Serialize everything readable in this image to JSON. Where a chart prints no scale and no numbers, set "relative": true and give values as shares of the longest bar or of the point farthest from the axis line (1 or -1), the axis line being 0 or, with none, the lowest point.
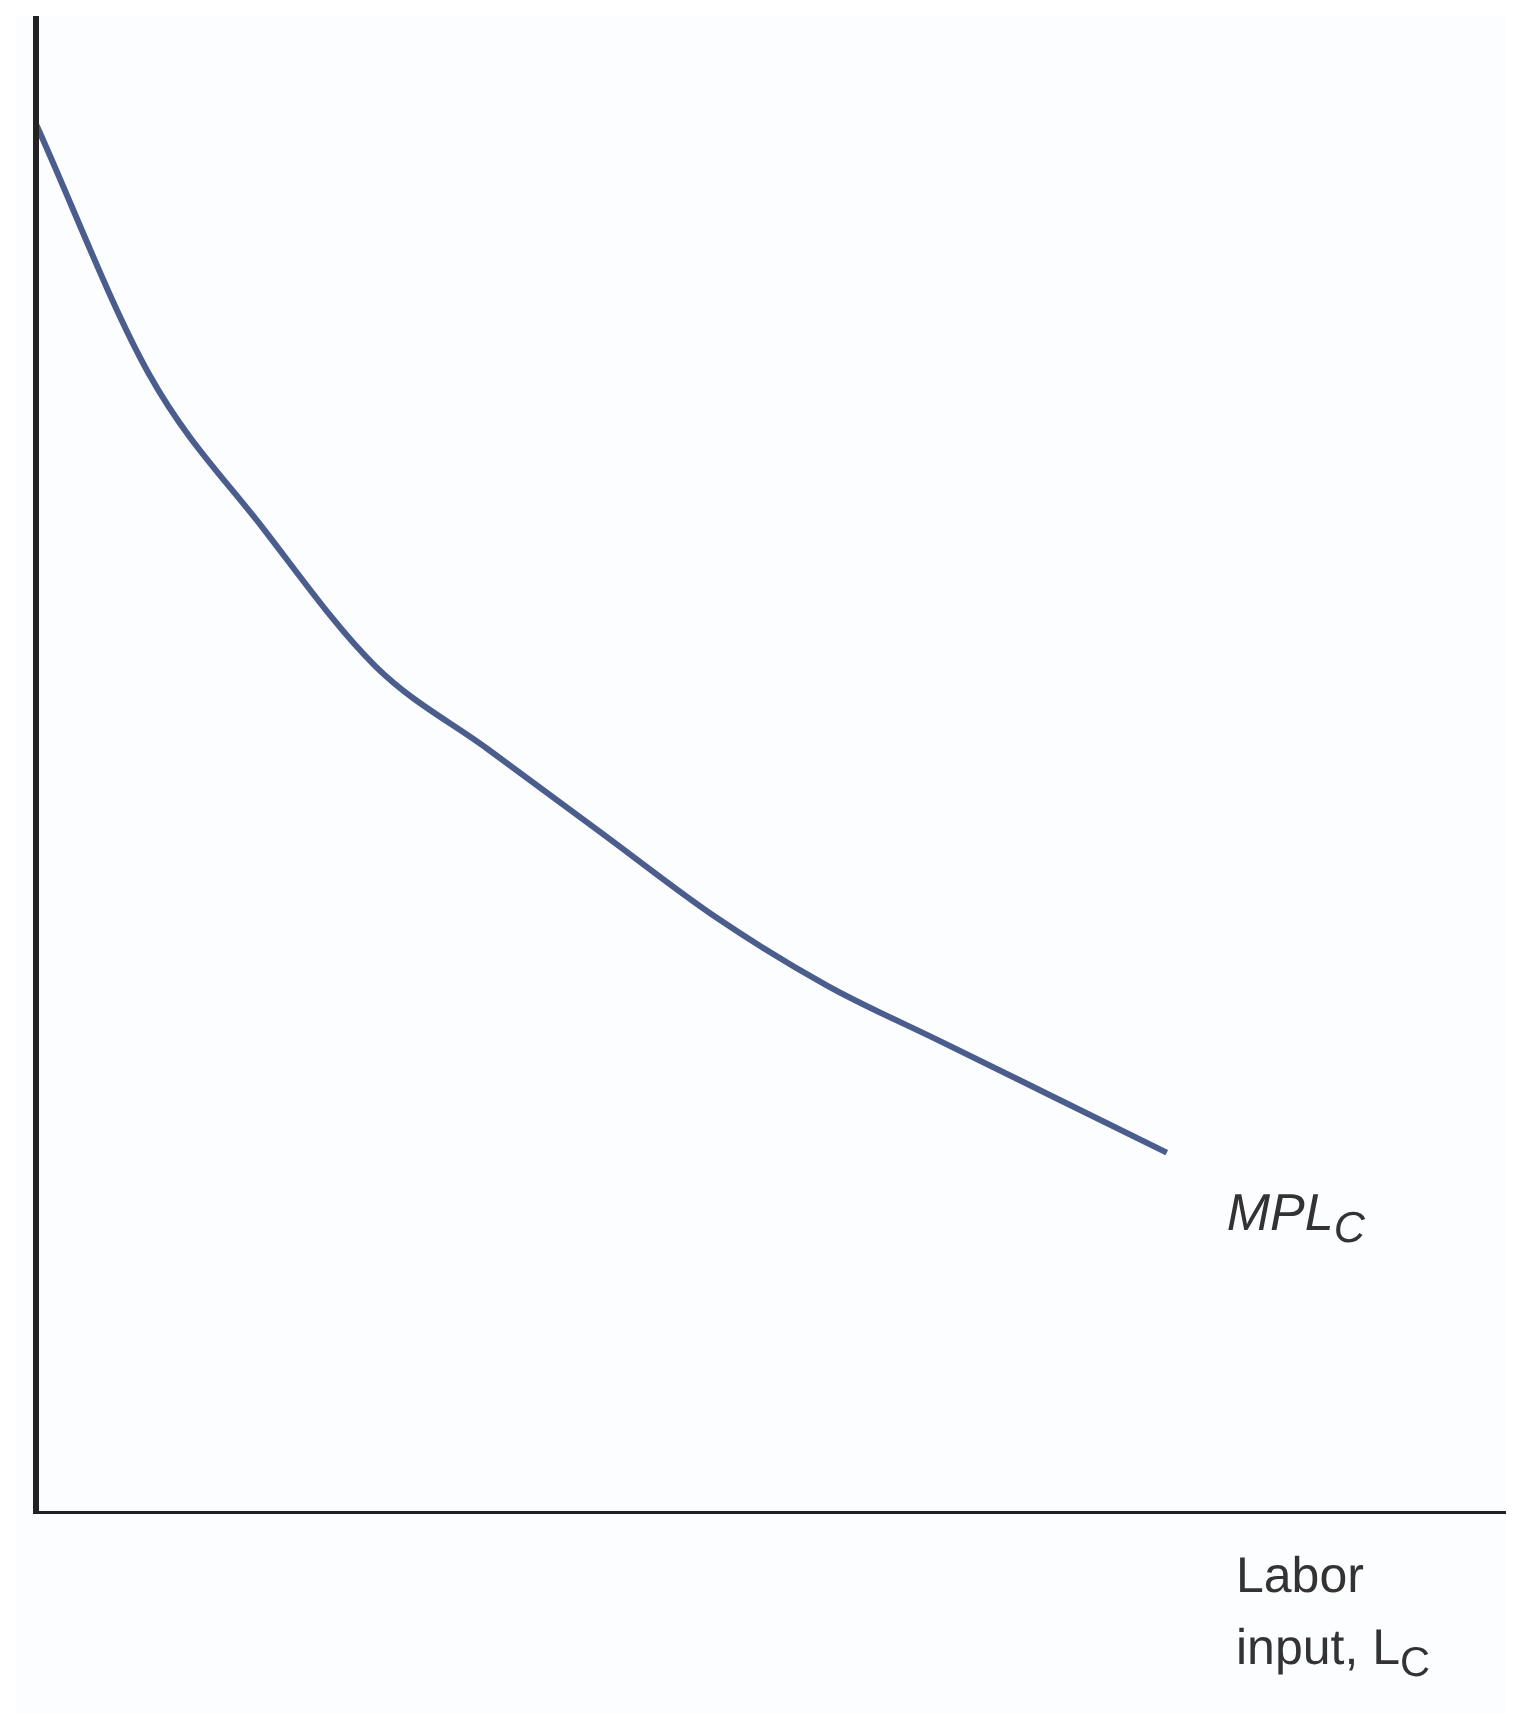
{
  "chart_data": {
    "type": "line",
    "relative": true,
    "xlabel": "Labor input, L$_{C}$",
    "categories": [
      null,
      null,
      null,
      null,
      null,
      null,
      null,
      null,
      null,
      null,
      null,
      null,
      null,
      null
    ],
    "series": [
      {
        "name": "MPL$_{C}$",
        "color": "#4a5d8c",
        "values": [
          1,
          0.82,
          0.71,
          0.61,
          0.55,
          0.49,
          0.43,
          0.38,
          0.34,
          0.3,
          0.26,
          null,
          null,
          null
        ]
      }
    ],
    "grid": false,
    "legend": false,
    "marker": "none",
    "line_style": "solid"
  }
}
